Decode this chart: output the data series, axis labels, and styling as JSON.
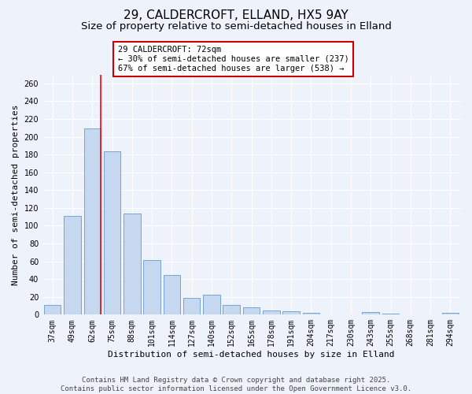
{
  "title_line1": "29, CALDERCROFT, ELLAND, HX5 9AY",
  "title_line2": "Size of property relative to semi-detached houses in Elland",
  "xlabel": "Distribution of semi-detached houses by size in Elland",
  "ylabel": "Number of semi-detached properties",
  "categories": [
    "37sqm",
    "49sqm",
    "62sqm",
    "75sqm",
    "88sqm",
    "101sqm",
    "114sqm",
    "127sqm",
    "140sqm",
    "152sqm",
    "165sqm",
    "178sqm",
    "191sqm",
    "204sqm",
    "217sqm",
    "230sqm",
    "243sqm",
    "255sqm",
    "268sqm",
    "281sqm",
    "294sqm"
  ],
  "values": [
    11,
    111,
    209,
    184,
    114,
    61,
    45,
    19,
    22,
    11,
    8,
    5,
    4,
    2,
    0,
    0,
    3,
    1,
    0,
    0,
    2
  ],
  "bar_color": "#c5d8ef",
  "bar_edge_color": "#6699cc",
  "background_color": "#eef2fa",
  "red_line_index": 2,
  "annotation_text": "29 CALDERCROFT: 72sqm\n← 30% of semi-detached houses are smaller (237)\n67% of semi-detached houses are larger (538) →",
  "annotation_box_color": "#ffffff",
  "annotation_box_edge": "#cc0000",
  "ylim": [
    0,
    270
  ],
  "yticks": [
    0,
    20,
    40,
    60,
    80,
    100,
    120,
    140,
    160,
    180,
    200,
    220,
    240,
    260
  ],
  "footer_line1": "Contains HM Land Registry data © Crown copyright and database right 2025.",
  "footer_line2": "Contains public sector information licensed under the Open Government Licence v3.0.",
  "title_fontsize": 11,
  "subtitle_fontsize": 9.5,
  "axis_label_fontsize": 8,
  "tick_fontsize": 7,
  "annotation_fontsize": 7.5,
  "footer_fontsize": 6.5
}
